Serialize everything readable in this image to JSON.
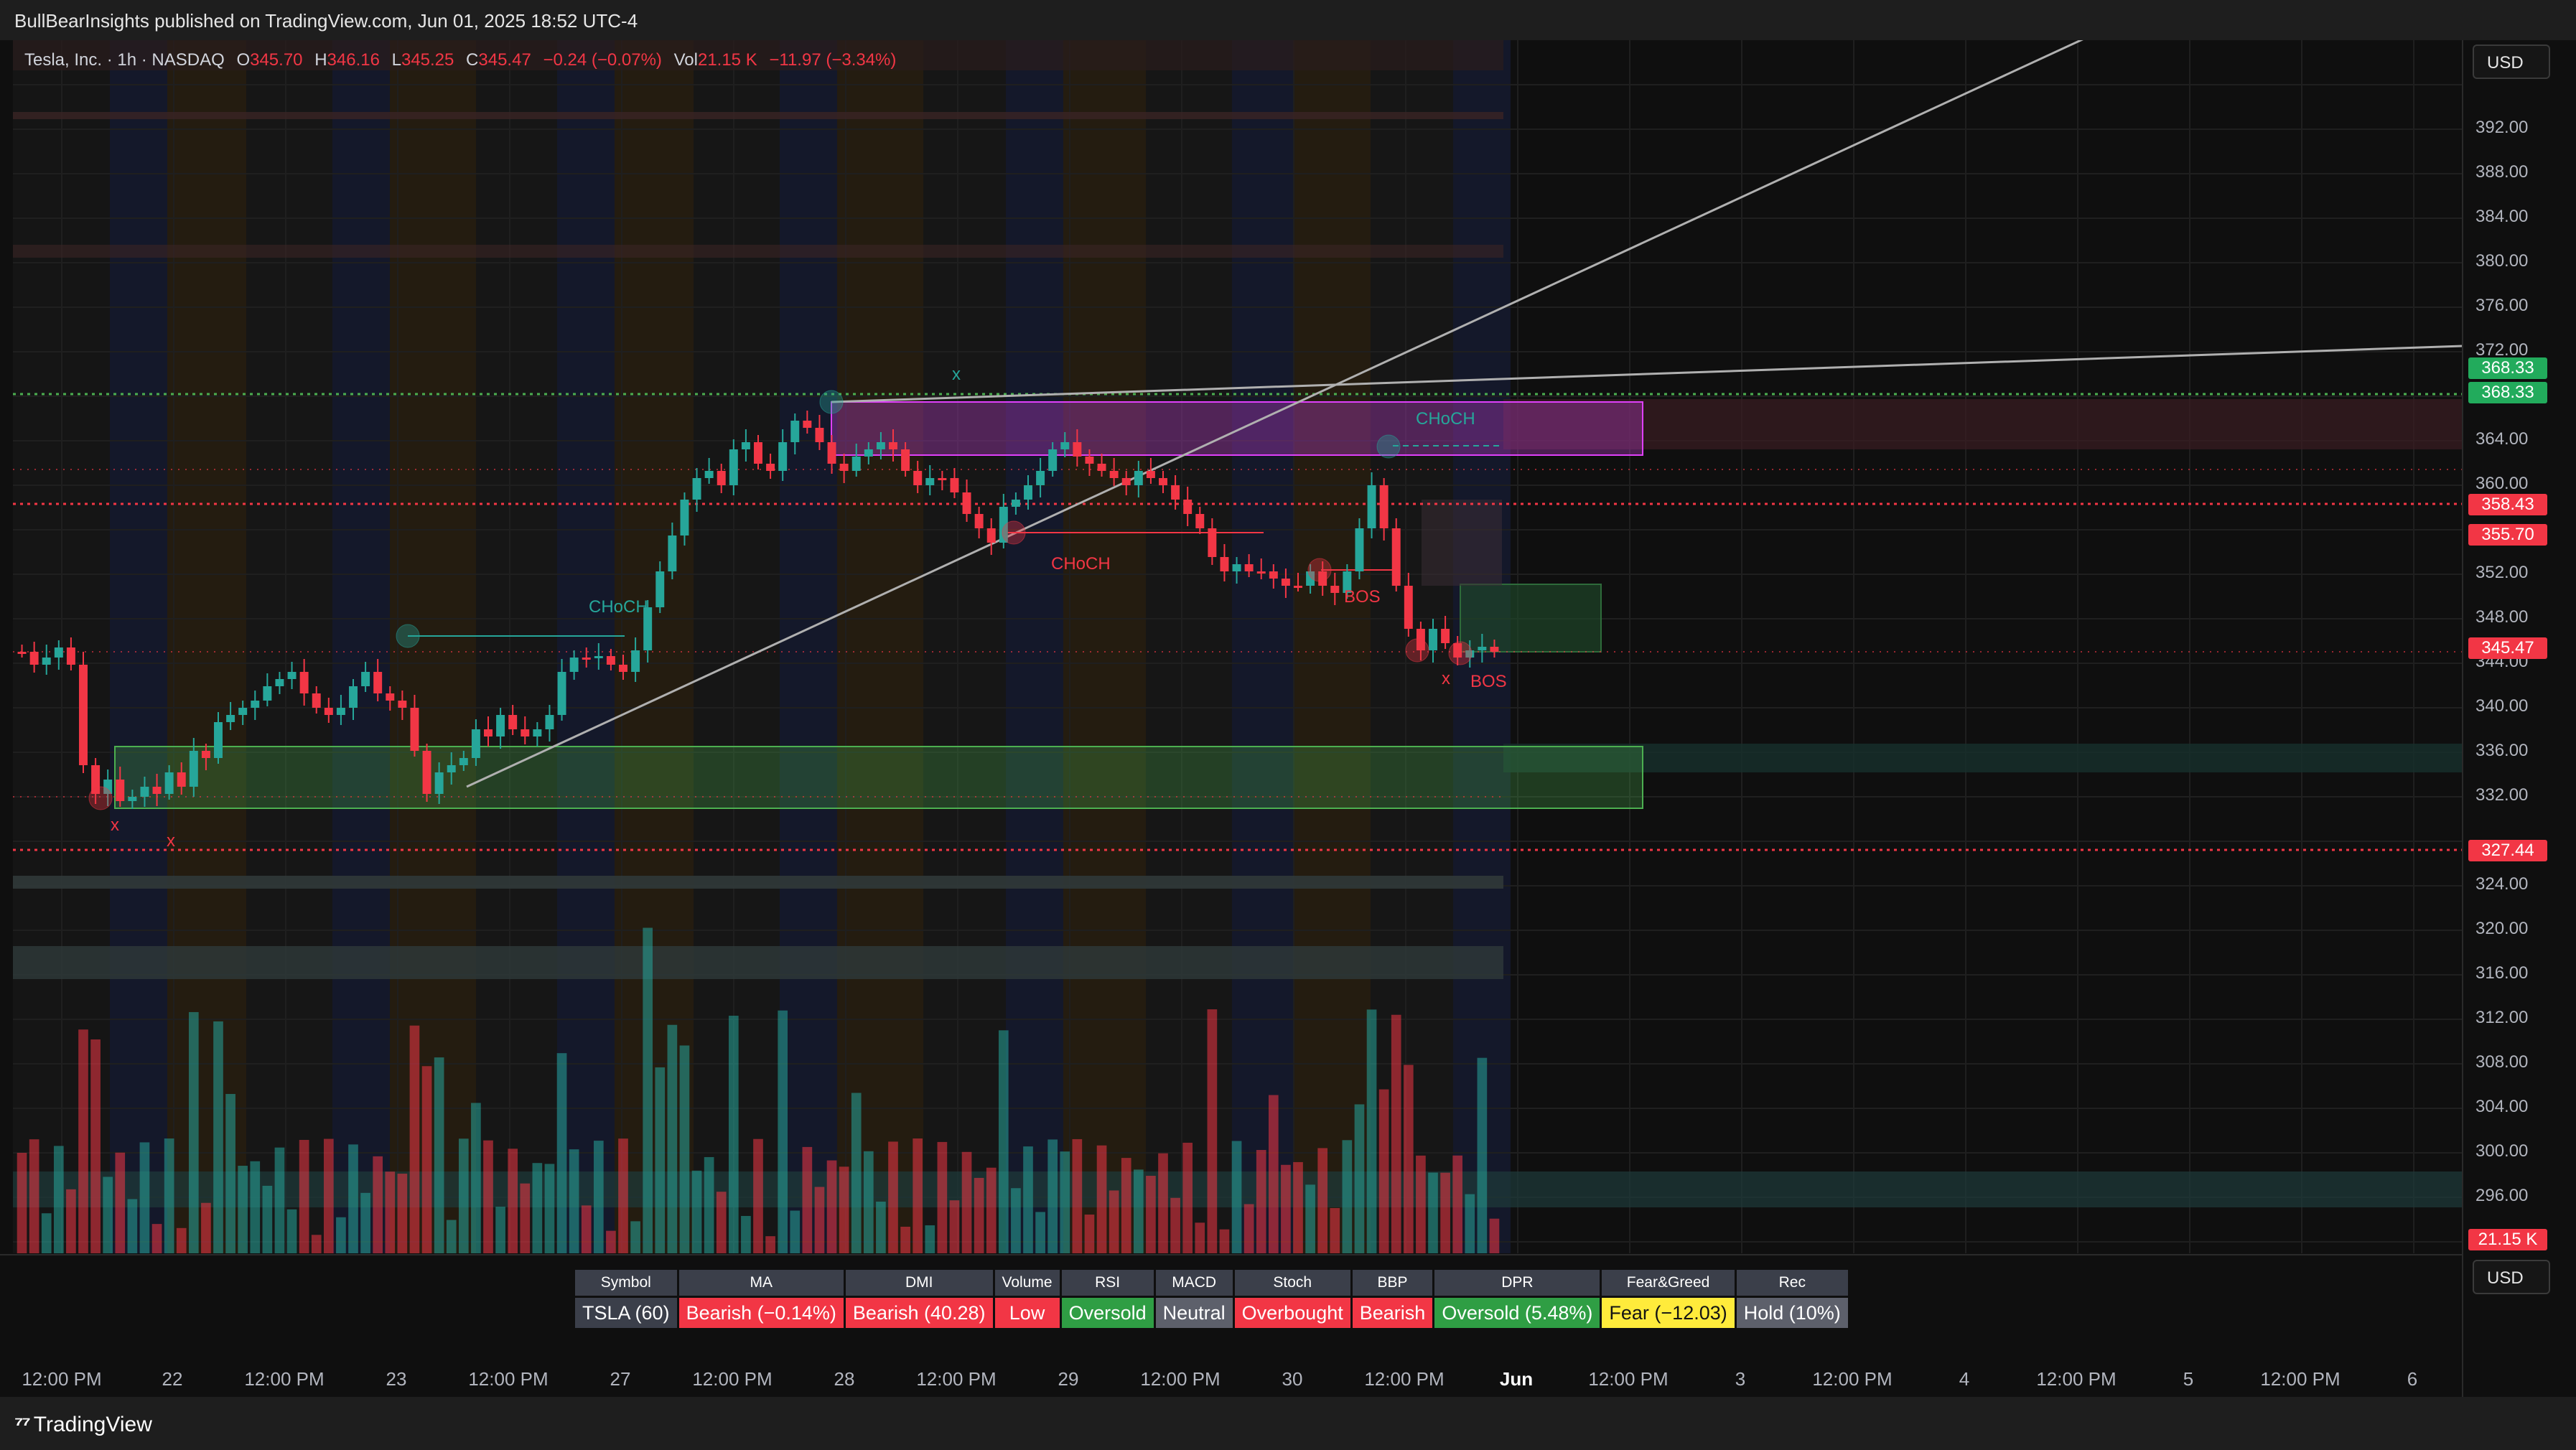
{
  "publisher": "BullBearInsights published on TradingView.com, Jun 01, 2025 18:52 UTC-4",
  "legend": {
    "symbol": "Tesla, Inc. · 1h · NASDAQ",
    "open_label": "O",
    "open": "345.70",
    "high_label": "H",
    "high": "346.16",
    "low_label": "L",
    "low": "345.25",
    "close_label": "C",
    "close": "345.47",
    "change": "−0.24 (−0.07%)",
    "vol_label": "Vol",
    "vol": "21.15 K",
    "vol_change": "−11.97 (−3.34%)"
  },
  "currency": "USD",
  "currency_lower": "USD",
  "y_axis": [
    "392.00",
    "388.00",
    "384.00",
    "380.00",
    "376.00",
    "372.00",
    "364.00",
    "360.00",
    "352.00",
    "348.00",
    "344.00",
    "340.00",
    "336.00",
    "332.00",
    "324.00",
    "320.00",
    "316.00",
    "312.00",
    "308.00",
    "304.00",
    "300.00",
    "296.00"
  ],
  "price_tags": [
    {
      "label": "368.33",
      "color": "#22ab5c"
    },
    {
      "label": "368.33",
      "color": "#22ab5c"
    },
    {
      "label": "358.43",
      "color": "#f23645"
    },
    {
      "label": "355.70",
      "color": "#f23645"
    },
    {
      "label": "345.47",
      "color": "#f23645"
    },
    {
      "label": "327.44",
      "color": "#f23645"
    },
    {
      "label": "21.15 K",
      "color": "#f23645"
    }
  ],
  "x_axis": [
    "12:00 PM",
    "22",
    "12:00 PM",
    "23",
    "12:00 PM",
    "27",
    "12:00 PM",
    "28",
    "12:00 PM",
    "29",
    "12:00 PM",
    "30",
    "12:00 PM",
    "Jun",
    "12:00 PM",
    "3",
    "12:00 PM",
    "4",
    "12:00 PM",
    "5",
    "12:00 PM",
    "6"
  ],
  "annotations": {
    "choch_1": "CHoCH",
    "choch_2": "CHoCH",
    "choch_3": "CHoCH",
    "bos_1": "BOS",
    "bos_2": "BOS",
    "x_marks": [
      "x",
      "x",
      "x",
      "x"
    ]
  },
  "table": {
    "headers": [
      "Symbol",
      "MA",
      "DMI",
      "Volume",
      "RSI",
      "MACD",
      "Stoch",
      "BBP",
      "DPR",
      "Fear&Greed",
      "Rec"
    ],
    "row": [
      {
        "text": "TSLA (60)",
        "bg": "#3b3f4a",
        "fg": "#ffffff"
      },
      {
        "text": "Bearish (−0.14%)",
        "bg": "#f23645",
        "fg": "#ffffff"
      },
      {
        "text": "Bearish (40.28)",
        "bg": "#f23645",
        "fg": "#ffffff"
      },
      {
        "text": "Low",
        "bg": "#f23645",
        "fg": "#ffffff"
      },
      {
        "text": "Oversold",
        "bg": "#2f9e44",
        "fg": "#ffffff"
      },
      {
        "text": "Neutral",
        "bg": "#5d606b",
        "fg": "#ffffff"
      },
      {
        "text": "Overbought",
        "bg": "#f23645",
        "fg": "#ffffff"
      },
      {
        "text": "Bearish",
        "bg": "#f23645",
        "fg": "#ffffff"
      },
      {
        "text": "Oversold (5.48%)",
        "bg": "#2f9e44",
        "fg": "#ffffff"
      },
      {
        "text": "Fear (−12.03)",
        "bg": "#ffeb3b",
        "fg": "#131313"
      },
      {
        "text": "Hold (10%)",
        "bg": "#5d606b",
        "fg": "#ffffff"
      }
    ]
  },
  "brand": "TradingView",
  "colors": {
    "up": "#26a69a",
    "down": "#f23645",
    "zone_green": "#4caf50",
    "zone_purple": "#e040fb"
  }
}
